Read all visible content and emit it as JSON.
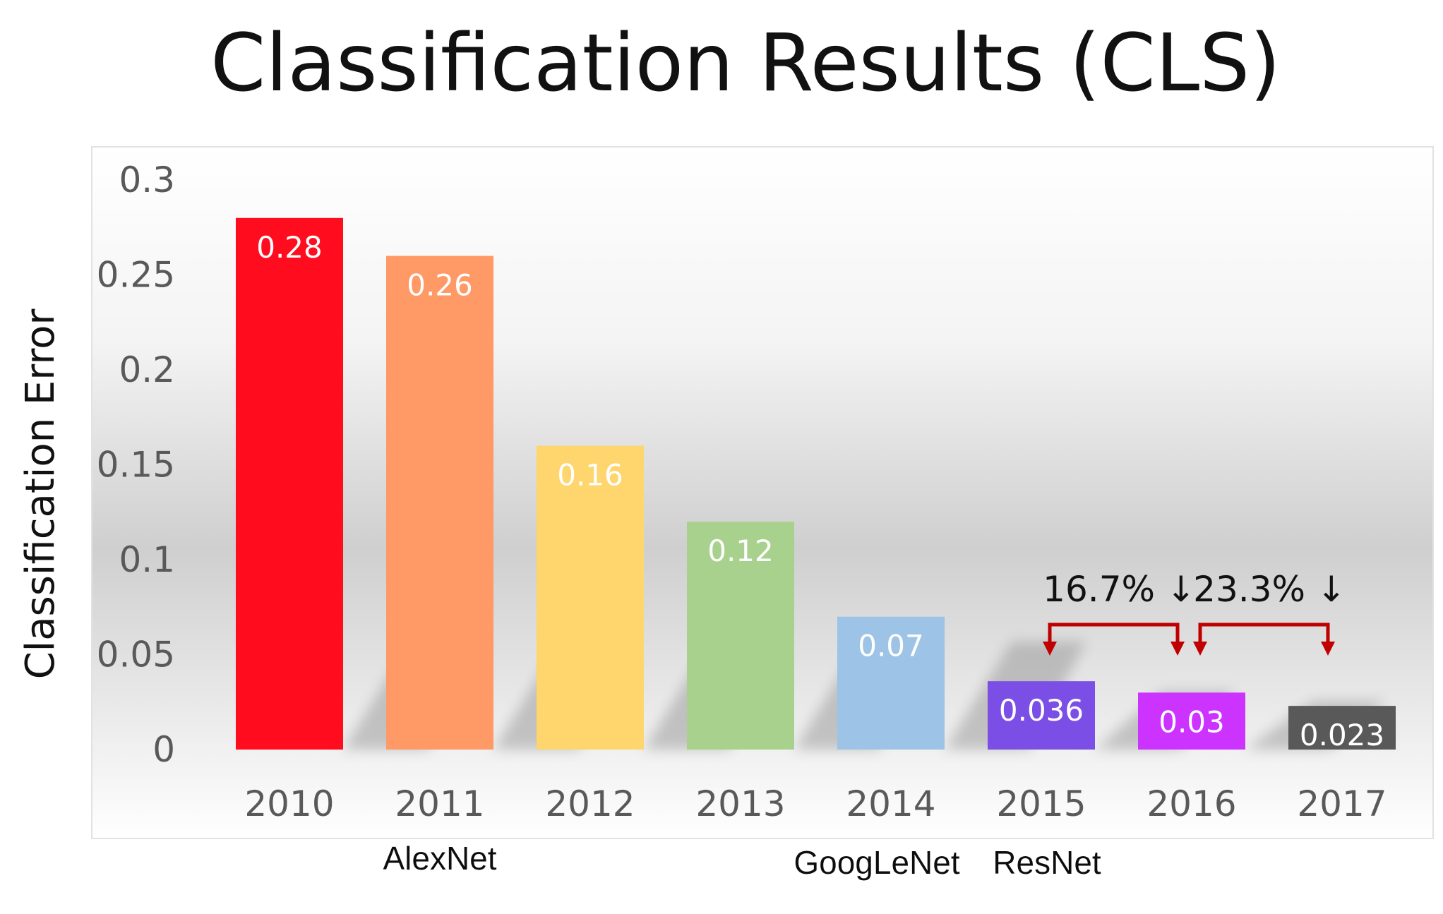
{
  "chart_data": {
    "type": "bar",
    "title": "Classification Results (CLS)",
    "ylabel": "Classification Error",
    "xlabel": "",
    "ylim": [
      0,
      0.3
    ],
    "yticks": [
      {
        "value": 0,
        "label": "0"
      },
      {
        "value": 0.05,
        "label": "0.05"
      },
      {
        "value": 0.1,
        "label": "0.1"
      },
      {
        "value": 0.15,
        "label": "0.15"
      },
      {
        "value": 0.2,
        "label": "0.2"
      },
      {
        "value": 0.25,
        "label": "0.25"
      },
      {
        "value": 0.3,
        "label": "0.3"
      }
    ],
    "grid": false,
    "legend": "none",
    "categories": [
      "2010",
      "2011",
      "2012",
      "2013",
      "2014",
      "2015",
      "2016",
      "2017"
    ],
    "values": [
      0.28,
      0.26,
      0.16,
      0.12,
      0.07,
      0.036,
      0.03,
      0.023
    ],
    "value_labels": [
      "0.28",
      "0.26",
      "0.16",
      "0.12",
      "0.07",
      "0.036",
      "0.03",
      "0.023"
    ],
    "colors": [
      "#ff0d1f",
      "#ff9966",
      "#ffd56e",
      "#a9d18e",
      "#9dc3e6",
      "#7b4fe6",
      "#cc33ff",
      "#595959"
    ],
    "network_labels": [
      {
        "category": "2011",
        "label": "AlexNet"
      },
      {
        "category": "2014",
        "label": "GoogLeNet"
      },
      {
        "category": "2015",
        "label": "ResNet"
      }
    ],
    "annotations": [
      {
        "from": "2015",
        "to": "2016",
        "label": "16.7% ↓"
      },
      {
        "from": "2016",
        "to": "2017",
        "label": "23.3% ↓"
      }
    ],
    "annotation_color": "#c00000"
  }
}
